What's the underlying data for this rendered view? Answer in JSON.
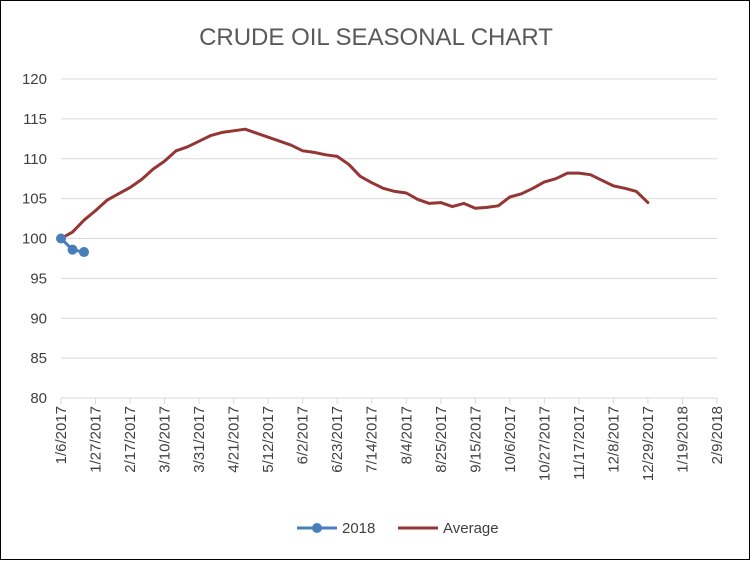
{
  "chart_data": {
    "type": "line",
    "title": "CRUDE OIL SEASONAL CHART",
    "xlabel": "",
    "ylabel": "",
    "x_axis": {
      "type": "date",
      "min": "2017-01-06",
      "max": "2018-02-09",
      "tick_labels": [
        "1/6/2017",
        "1/27/2017",
        "2/17/2017",
        "3/10/2017",
        "3/31/2017",
        "4/21/2017",
        "5/12/2017",
        "6/2/2017",
        "6/23/2017",
        "7/14/2017",
        "8/4/2017",
        "8/25/2017",
        "9/15/2017",
        "10/6/2017",
        "10/27/2017",
        "11/17/2017",
        "12/8/2017",
        "12/29/2017",
        "1/19/2018",
        "2/9/2018"
      ],
      "tick_label_rotation": "vertical"
    },
    "y_axis": {
      "min": 80,
      "max": 120,
      "tick_labels": [
        "80",
        "85",
        "90",
        "95",
        "100",
        "105",
        "110",
        "115",
        "120"
      ]
    },
    "grid": "horizontal",
    "legend": "bottom",
    "series": [
      {
        "name": "2018",
        "color": "#4a7ebb",
        "markers": true,
        "points": [
          [
            "2017-01-06",
            100.0
          ],
          [
            "2017-01-13",
            98.6
          ],
          [
            "2017-01-20",
            98.3
          ]
        ]
      },
      {
        "name": "Average",
        "color": "#943634",
        "markers": false,
        "points": [
          [
            "2017-01-06",
            100.0
          ],
          [
            "2017-01-13",
            100.8
          ],
          [
            "2017-01-20",
            102.3
          ],
          [
            "2017-01-27",
            103.5
          ],
          [
            "2017-02-03",
            104.8
          ],
          [
            "2017-02-10",
            105.6
          ],
          [
            "2017-02-17",
            106.4
          ],
          [
            "2017-02-24",
            107.4
          ],
          [
            "2017-03-03",
            108.7
          ],
          [
            "2017-03-10",
            109.7
          ],
          [
            "2017-03-17",
            111.0
          ],
          [
            "2017-03-24",
            111.5
          ],
          [
            "2017-03-31",
            112.2
          ],
          [
            "2017-04-07",
            112.9
          ],
          [
            "2017-04-14",
            113.3
          ],
          [
            "2017-04-21",
            113.5
          ],
          [
            "2017-04-28",
            113.7
          ],
          [
            "2017-05-05",
            113.2
          ],
          [
            "2017-05-12",
            112.7
          ],
          [
            "2017-05-19",
            112.2
          ],
          [
            "2017-05-26",
            111.7
          ],
          [
            "2017-06-02",
            111.0
          ],
          [
            "2017-06-09",
            110.8
          ],
          [
            "2017-06-16",
            110.5
          ],
          [
            "2017-06-23",
            110.3
          ],
          [
            "2017-06-30",
            109.3
          ],
          [
            "2017-07-07",
            107.8
          ],
          [
            "2017-07-14",
            107.0
          ],
          [
            "2017-07-21",
            106.3
          ],
          [
            "2017-07-28",
            105.9
          ],
          [
            "2017-08-04",
            105.7
          ],
          [
            "2017-08-11",
            104.9
          ],
          [
            "2017-08-18",
            104.4
          ],
          [
            "2017-08-25",
            104.5
          ],
          [
            "2017-09-01",
            104.0
          ],
          [
            "2017-09-08",
            104.4
          ],
          [
            "2017-09-15",
            103.8
          ],
          [
            "2017-09-22",
            103.9
          ],
          [
            "2017-09-29",
            104.1
          ],
          [
            "2017-10-06",
            105.2
          ],
          [
            "2017-10-13",
            105.6
          ],
          [
            "2017-10-20",
            106.3
          ],
          [
            "2017-10-27",
            107.1
          ],
          [
            "2017-11-03",
            107.5
          ],
          [
            "2017-11-10",
            108.2
          ],
          [
            "2017-11-17",
            108.2
          ],
          [
            "2017-11-24",
            108.0
          ],
          [
            "2017-12-01",
            107.3
          ],
          [
            "2017-12-08",
            106.6
          ],
          [
            "2017-12-15",
            106.3
          ],
          [
            "2017-12-22",
            105.9
          ],
          [
            "2017-12-29",
            104.5
          ]
        ]
      }
    ]
  }
}
